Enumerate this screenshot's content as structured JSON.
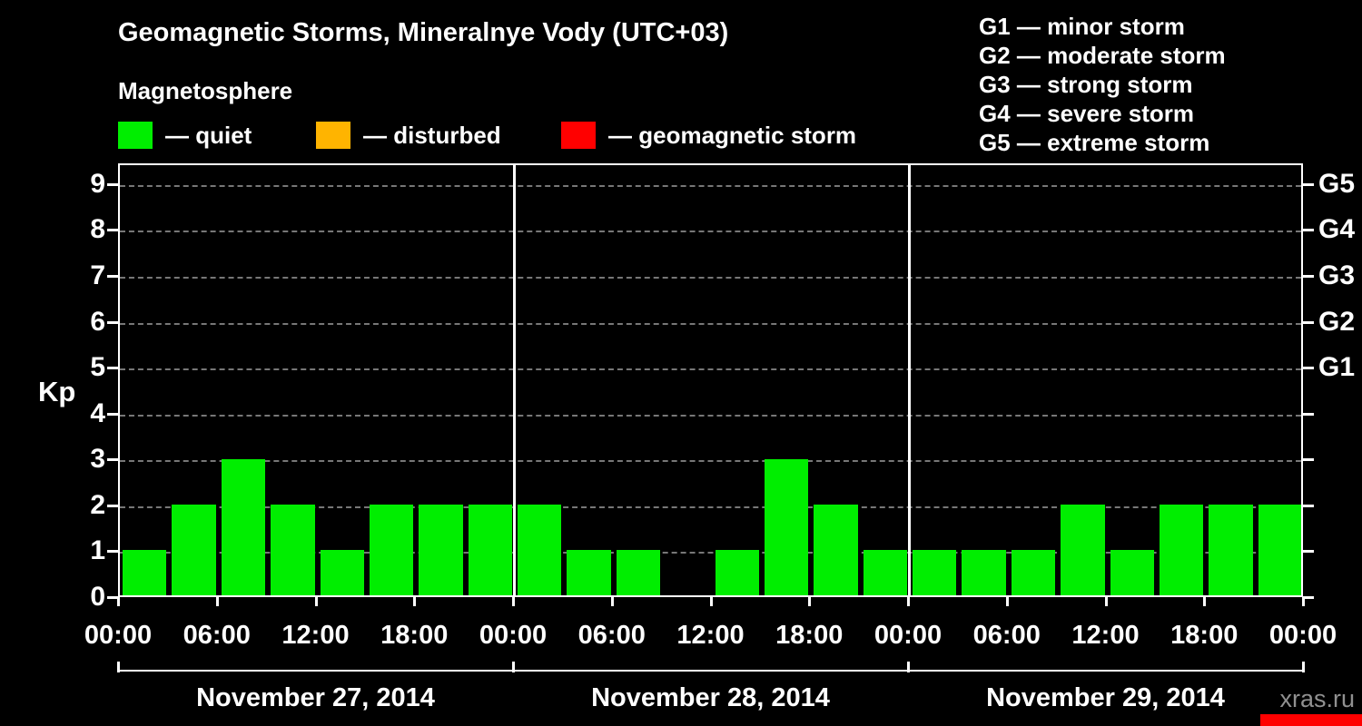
{
  "title": "Geomagnetic Storms, Mineralnye Vody (UTC+03)",
  "subtitle": "Magnetosphere",
  "legend": [
    {
      "label": "— quiet",
      "color": "#00ee00"
    },
    {
      "label": "— disturbed",
      "color": "#ffb400"
    },
    {
      "label": "— geomagnetic storm",
      "color": "#ff0000"
    }
  ],
  "storm_scale": [
    {
      "label": "G1 — minor storm"
    },
    {
      "label": "G2 — moderate storm"
    },
    {
      "label": "G3 — strong storm"
    },
    {
      "label": "G4 — severe storm"
    },
    {
      "label": "G5 — extreme storm"
    }
  ],
  "watermark": "xras.ru",
  "accent_colors": {
    "quiet": "#00ee00",
    "disturbed": "#ffb400",
    "storm": "#ff0000"
  },
  "chart_data": {
    "type": "bar",
    "title": "Geomagnetic Storms, Mineralnye Vody (UTC+03)",
    "ylabel": "Kp",
    "ylim": [
      0,
      9.45
    ],
    "yticks": [
      0,
      1,
      2,
      3,
      4,
      5,
      6,
      7,
      8,
      9
    ],
    "grid": "horizontal-dashed",
    "legend_position": "top",
    "bar_color": "#00ee00",
    "hours_per_bar": 3,
    "x_tick_labels": [
      "00:00",
      "06:00",
      "12:00",
      "18:00",
      "00:00",
      "06:00",
      "12:00",
      "18:00",
      "00:00",
      "06:00",
      "12:00",
      "18:00",
      "00:00"
    ],
    "right_axis": [
      {
        "kp": 9,
        "label": "G5"
      },
      {
        "kp": 8,
        "label": "G4"
      },
      {
        "kp": 7,
        "label": "G3"
      },
      {
        "kp": 6,
        "label": "G2"
      },
      {
        "kp": 5,
        "label": "G1"
      }
    ],
    "days": [
      {
        "date": "November 27, 2014",
        "kp_values": [
          1,
          2,
          3,
          2,
          1,
          2,
          2,
          2
        ]
      },
      {
        "date": "November 28, 2014",
        "kp_values": [
          2,
          1,
          1,
          0,
          1,
          3,
          2,
          1
        ]
      },
      {
        "date": "November 29, 2014",
        "kp_values": [
          1,
          1,
          1,
          2,
          1,
          2,
          2,
          2
        ]
      }
    ]
  }
}
